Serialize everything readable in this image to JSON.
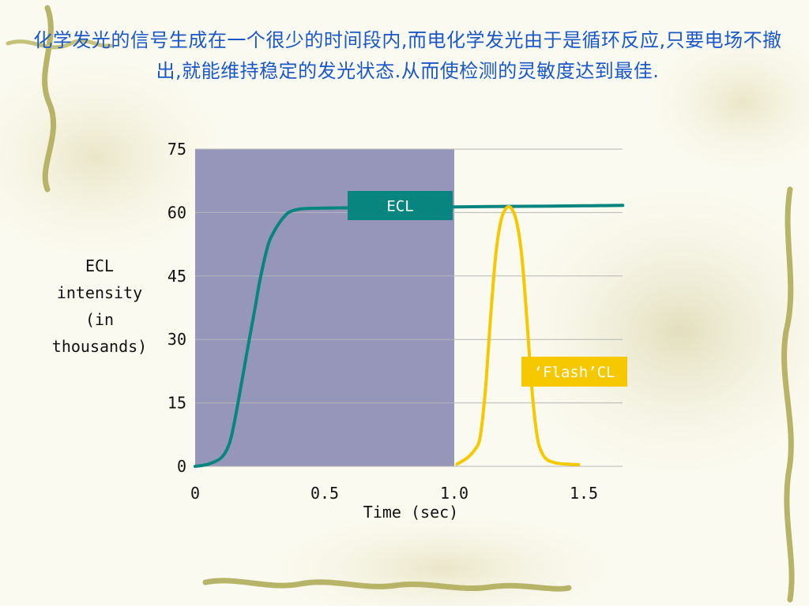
{
  "slide": {
    "heading": "化学发光的信号生成在一个很少的时间段内,而电化学发光由于是循环反应,只要电场不撤出,就能维持稳定的发光状态.从而使检测的灵敏度达到最佳."
  },
  "chart_data": {
    "type": "line",
    "xlabel": "Time (sec)",
    "ylabel": "ECL intensity (in thousands)",
    "ylim": [
      0,
      75
    ],
    "xlim": [
      0,
      1.62
    ],
    "yticks": [
      "0",
      "15",
      "30",
      "45",
      "60",
      "75"
    ],
    "xticks": [
      {
        "value": 0,
        "label": "0"
      },
      {
        "value": 0.5,
        "label": "0.5"
      },
      {
        "value": 1.0,
        "label": "1.0"
      },
      {
        "value": 1.5,
        "label": "1.5"
      }
    ],
    "grid": true,
    "shaded_region": {
      "x_start": 0,
      "x_end": 1.0,
      "color": "#9696ba"
    },
    "series": [
      {
        "name": "ECL",
        "color": "#08857e",
        "x": [
          0,
          0.05,
          0.1,
          0.13,
          0.15,
          0.18,
          0.2,
          0.23,
          0.25,
          0.28,
          0.3,
          0.33,
          0.36,
          0.4,
          0.45,
          0.55,
          0.7,
          0.9,
          1.1,
          1.3,
          1.5,
          1.65
        ],
        "y": [
          0,
          0.5,
          2,
          5,
          10,
          20,
          27,
          37,
          44,
          52,
          55,
          58,
          60,
          60.8,
          61,
          61.1,
          61.2,
          61.3,
          61.4,
          61.5,
          61.6,
          61.7
        ]
      },
      {
        "name": "'Flash' CL",
        "color": "#f5c800",
        "x": [
          1.01,
          1.05,
          1.08,
          1.1,
          1.12,
          1.14,
          1.16,
          1.18,
          1.2,
          1.22,
          1.24,
          1.26,
          1.28,
          1.3,
          1.32,
          1.34,
          1.36,
          1.38,
          1.4,
          1.44,
          1.48
        ],
        "y": [
          0.5,
          2,
          4,
          7,
          18,
          35,
          50,
          58,
          61,
          61,
          58,
          50,
          35,
          18,
          7,
          3,
          1.5,
          1,
          0.7,
          0.5,
          0.4
        ]
      }
    ],
    "labels": [
      {
        "text": "ECL",
        "bg": "#08857e",
        "color": "#ffffff"
      },
      {
        "text": "‘Flash’CL",
        "bg": "#f5c800",
        "color": "#ffffff"
      }
    ]
  }
}
